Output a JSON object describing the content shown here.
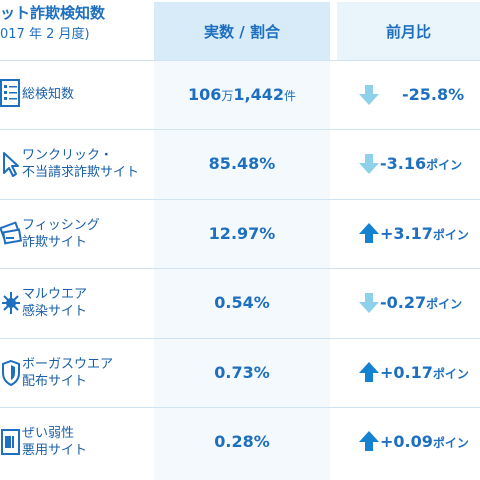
{
  "header": {
    "title": "ット詐欺検知数",
    "subtitle": "017 年 2 月度)",
    "value_col": "実数 / 割合",
    "compare_col": "前月比"
  },
  "rows": [
    {
      "label1": "総検知数",
      "label2": "",
      "value": "106",
      "value_unit1": "万",
      "value2": "1,442",
      "value_unit2": "件",
      "change": "-25.8%",
      "change_unit": "",
      "direction": "down",
      "icon": "document-list-icon"
    },
    {
      "label1": "ワンクリック・",
      "label2": "不当請求詐欺サイト",
      "value": "85.48%",
      "value_unit1": "",
      "value2": "",
      "value_unit2": "",
      "change": "-3.16",
      "change_unit": "ポイン",
      "direction": "down",
      "icon": "click-icon"
    },
    {
      "label1": "フィッシング",
      "label2": "詐欺サイト",
      "value": "12.97%",
      "value_unit1": "",
      "value2": "",
      "value_unit2": "",
      "change": "+3.17",
      "change_unit": "ポイン",
      "direction": "up",
      "icon": "credit-card-icon"
    },
    {
      "label1": "マルウエア",
      "label2": "感染サイト",
      "value": "0.54%",
      "value_unit1": "",
      "value2": "",
      "value_unit2": "",
      "change": "-0.27",
      "change_unit": "ポイン",
      "direction": "down",
      "icon": "bug-icon"
    },
    {
      "label1": "ボーガスウエア",
      "label2": "配布サイト",
      "value": "0.73%",
      "value_unit1": "",
      "value2": "",
      "value_unit2": "",
      "change": "+0.17",
      "change_unit": "ポイン",
      "direction": "up",
      "icon": "shield-icon"
    },
    {
      "label1": "ぜい弱性",
      "label2": "悪用サイト",
      "value": "0.28%",
      "value_unit1": "",
      "value2": "",
      "value_unit2": "",
      "change": "+0.09",
      "change_unit": "ポイン",
      "direction": "up",
      "icon": "vulnerable-page-icon"
    }
  ],
  "colors": {
    "down_arrow": "#8fd0ea",
    "up_arrow": "#1581d0",
    "accent": "#1e6fbf"
  }
}
